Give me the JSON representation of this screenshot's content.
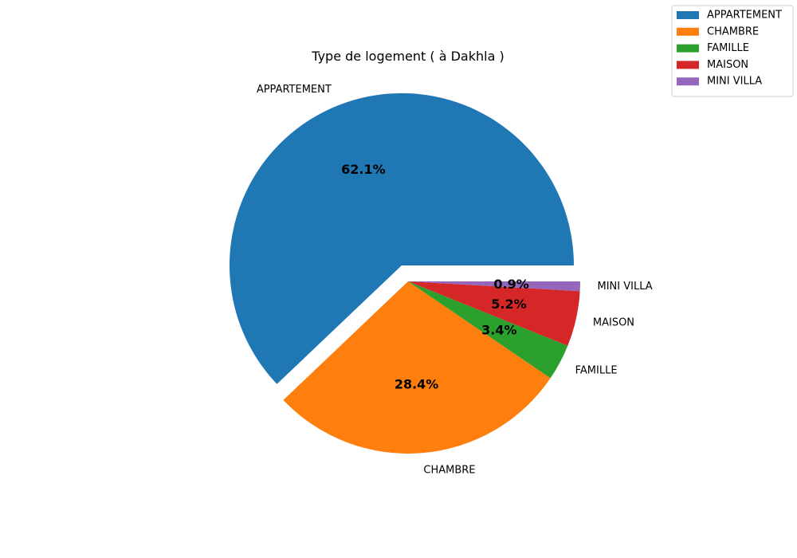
{
  "chart_data": {
    "type": "pie",
    "title": "Type de logement ( à Dakhla )",
    "labels": [
      "APPARTEMENT",
      "CHAMBRE",
      "FAMILLE",
      "MAISON",
      "MINI VILLA"
    ],
    "values": [
      62.1,
      28.4,
      3.4,
      5.2,
      0.9
    ],
    "value_labels": [
      "62.1%",
      "28.4%",
      "3.4%",
      "5.2%",
      "0.9%"
    ],
    "colors": [
      "#1f77b4",
      "#ff7f0e",
      "#2ca02c",
      "#d62728",
      "#9467bd"
    ],
    "exploded": [
      "APPARTEMENT"
    ],
    "start_angle_deg": 0,
    "direction": "counterclockwise",
    "legend": {
      "position": "top-right",
      "entries": [
        "APPARTEMENT",
        "CHAMBRE",
        "FAMILLE",
        "MAISON",
        "MINI VILLA"
      ]
    }
  }
}
